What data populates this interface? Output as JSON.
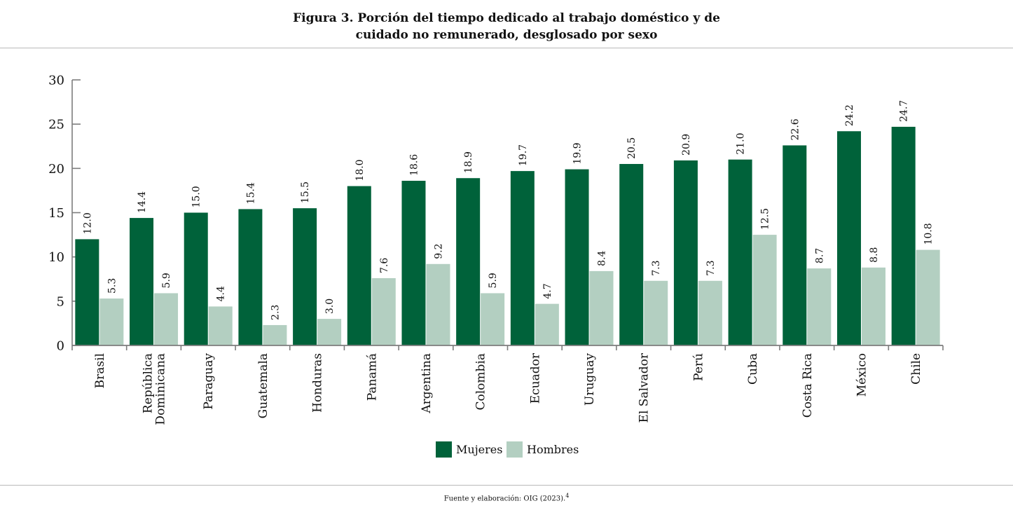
{
  "title_line1": "Figura 3. Porción del tiempo dedicado al trabajo doméstico y de",
  "title_line2": "cuidado no remunerado, desglosado por sexo",
  "footnote_text": "Fuente y elaboración: OIG (2023).",
  "footnote_ref": "4",
  "chart_data": {
    "type": "bar",
    "title": "Figura 3. Porción del tiempo dedicado al trabajo doméstico y de cuidado no remunerado, desglosado por sexo",
    "xlabel": "",
    "ylabel": "",
    "ylim": [
      0,
      30
    ],
    "yticks": [
      "0",
      "5",
      "10",
      "15",
      "20",
      "25",
      "30"
    ],
    "grid": false,
    "legend_position": "bottom",
    "categories": [
      [
        "Brasil"
      ],
      [
        "República",
        "Dominicana"
      ],
      [
        "Paraguay"
      ],
      [
        "Guatemala"
      ],
      [
        "Honduras"
      ],
      [
        "Panamá"
      ],
      [
        "Argentina"
      ],
      [
        "Colombia"
      ],
      [
        "Ecuador"
      ],
      [
        "Uruguay"
      ],
      [
        "El Salvador"
      ],
      [
        "Perú"
      ],
      [
        "Cuba"
      ],
      [
        "Costa Rica"
      ],
      [
        "México"
      ],
      [
        "Chile"
      ]
    ],
    "series": [
      {
        "name": "Mujeres",
        "color": "#00623a",
        "values": [
          12.0,
          14.4,
          15.0,
          15.4,
          15.5,
          18.0,
          18.6,
          18.9,
          19.7,
          19.9,
          20.5,
          20.9,
          21.0,
          22.6,
          24.2,
          24.7
        ],
        "labels": [
          "12.0",
          "14.4",
          "15.0",
          "15.4",
          "15.5",
          "18.0",
          "18.6",
          "18.9",
          "19.7",
          "19.9",
          "20.5",
          "20.9",
          "21.0",
          "22.6",
          "24.2",
          "24.7"
        ]
      },
      {
        "name": "Hombres",
        "color": "#b3cfc1",
        "values": [
          5.3,
          5.9,
          4.4,
          2.3,
          3.0,
          7.6,
          9.2,
          5.9,
          4.7,
          8.4,
          7.3,
          7.3,
          12.5,
          8.7,
          8.8,
          10.8
        ],
        "labels": [
          "5.3",
          "5.9",
          "4.4",
          "2.3",
          "3.0",
          "7.6",
          "9.2",
          "5.9",
          "4.7",
          "8.4",
          "7.3",
          "7.3",
          "12.5",
          "8.7",
          "8.8",
          "10.8"
        ]
      }
    ]
  }
}
